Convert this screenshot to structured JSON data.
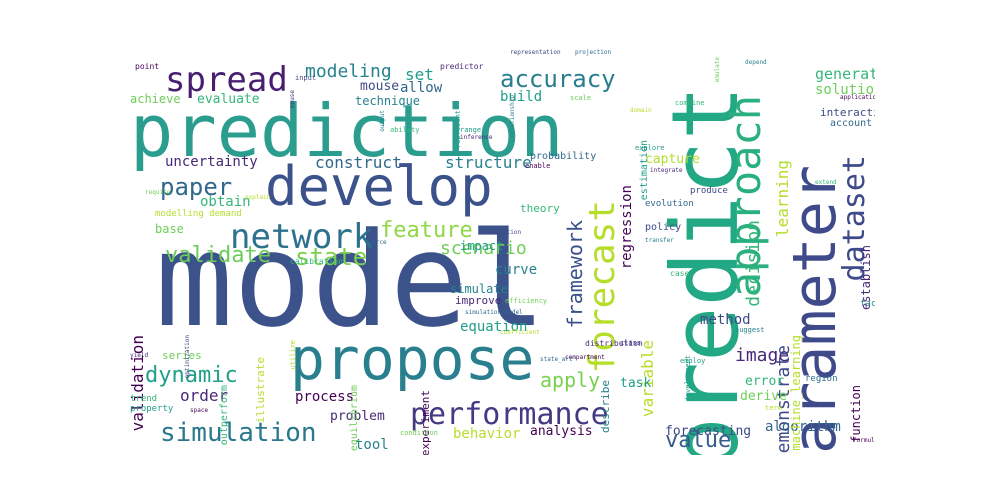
{
  "words": [
    "model",
    "prediction",
    "predict",
    "parameter",
    "develop",
    "propose",
    "approach",
    "performance",
    "network",
    "dataset",
    "spread",
    "accuracy",
    "forecast",
    "paper",
    "simulation",
    "state",
    "validate",
    "dynamic",
    "apply",
    "feature",
    "value",
    "framework",
    "modeling",
    "set",
    "decision",
    "scenario",
    "learning",
    "validation",
    "image",
    "demonstrate",
    "construct",
    "structure",
    "train",
    "generate",
    "solution",
    "variable",
    "regression",
    "uncertainty",
    "mouse",
    "allow",
    "technique",
    "build",
    "evaluate",
    "achieve",
    "capture",
    "process",
    "order",
    "method",
    "incorporate",
    "curve",
    "equation",
    "obtain",
    "base",
    "behavior",
    "analysis",
    "problem",
    "forecasting",
    "algorithm",
    "tool",
    "task",
    "error",
    "derive",
    "machine_learning",
    "function",
    "establish",
    "interaction",
    "account",
    "simulate",
    "impact",
    "theory",
    "series",
    "illustrate",
    "experiment",
    "improve",
    "policy",
    "probability",
    "describe",
    "estimation",
    "outperform",
    "equilibrium",
    "modelling demand",
    "point",
    "predictor",
    "representation",
    "projection",
    "depend",
    "range",
    "ability",
    "require",
    "explain",
    "enable",
    "integrate",
    "produce",
    "evolution",
    "transfer",
    "development",
    "calibration",
    "efficiency",
    "coefficient",
    "compartment",
    "distribution",
    "class",
    "region",
    "factor",
    "property",
    "trend",
    "condition",
    "term",
    "formula_test",
    "yield",
    "optimization",
    "state_art",
    "suggest",
    "employ",
    "combine",
    "scale",
    "domain",
    "application",
    "inference",
    "assumption",
    "source",
    "relationship",
    "represent",
    "extend",
    "emulate",
    "utilize",
    "space",
    "mouse",
    "input",
    "simulation model",
    "output",
    "explore",
    "case"
  ],
  "colors": {
    "model": "#3b528b",
    "prediction": "#2a9d8f",
    "predict": "#22a884",
    "parameter": "#3e4a89",
    "develop": "#3b528b",
    "propose": "#2a7f8e",
    "approach": "#2ab07f",
    "performance": "#443a83",
    "network": "#2c728e",
    "dataset": "#3e4a89",
    "spread": "#481f70",
    "accuracy": "#287d8e",
    "forecast": "#b5de2b",
    "paper": "#31688e",
    "simulation": "#2a788e",
    "state": "#7ad151",
    "validate": "#6ccd5a",
    "dynamic": "#1fa088",
    "apply": "#7ad151",
    "feature": "#8fd744",
    "value": "#365c8d",
    "framework": "#3b528b"
  }
}
